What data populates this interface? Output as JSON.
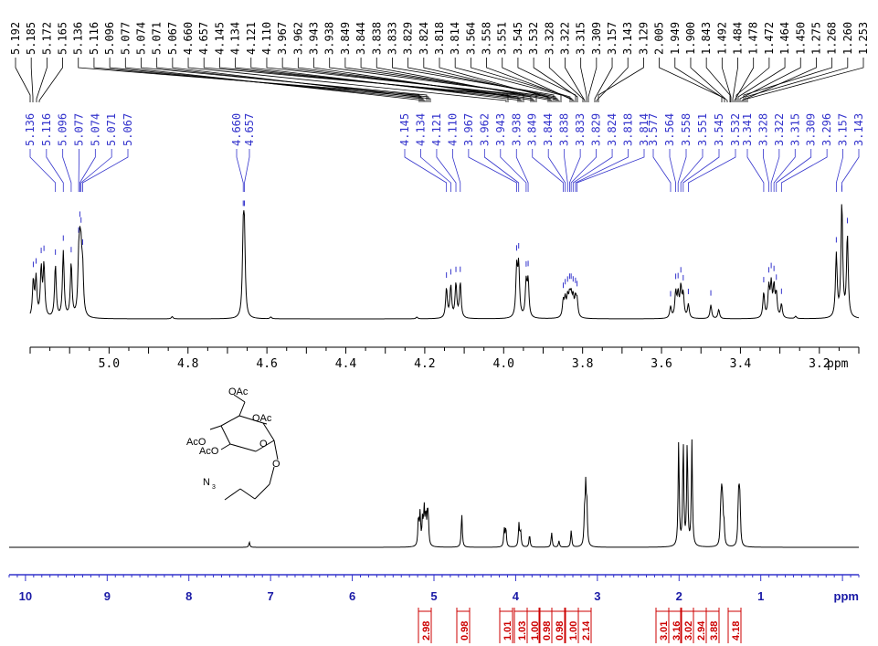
{
  "chart_data": [
    {
      "type": "line",
      "panel": "expanded",
      "xlabel": "ppm",
      "xlim": [
        5.2,
        3.1
      ],
      "reversed_axis": true,
      "x_ticks": [
        "5.0",
        "4.8",
        "4.6",
        "4.4",
        "4.2",
        "4.0",
        "3.8",
        "3.6",
        "3.4",
        "3.2"
      ],
      "top_peak_labels": [
        "5.192",
        "5.185",
        "5.172",
        "5.165",
        "5.136",
        "5.116",
        "5.096",
        "5.077",
        "5.074",
        "5.071",
        "5.067",
        "4.660",
        "4.657",
        "4.145",
        "4.134",
        "4.121",
        "4.110",
        "3.967",
        "3.962",
        "3.943",
        "3.938",
        "3.849",
        "3.844",
        "3.838",
        "3.833",
        "3.829",
        "3.824",
        "3.818",
        "3.814",
        "3.564",
        "3.558",
        "3.551",
        "3.545",
        "3.532",
        "3.328",
        "3.322",
        "3.315",
        "3.309",
        "3.157",
        "3.143",
        "3.129",
        "2.005",
        "1.949",
        "1.900",
        "1.843",
        "1.492",
        "1.484",
        "1.478",
        "1.472",
        "1.464",
        "1.450",
        "1.275",
        "1.268",
        "1.260",
        "1.253"
      ],
      "blue_peak_labels": [
        "5.136",
        "5.116",
        "5.096",
        "5.077",
        "5.074",
        "5.071",
        "5.067",
        "4.660",
        "4.657",
        "4.145",
        "4.134",
        "4.121",
        "4.110",
        "3.967",
        "3.962",
        "3.943",
        "3.938",
        "3.849",
        "3.844",
        "3.838",
        "3.833",
        "3.829",
        "3.824",
        "3.818",
        "3.814",
        "3.577",
        "3.564",
        "3.558",
        "3.551",
        "3.545",
        "3.532",
        "3.341",
        "3.328",
        "3.322",
        "3.315",
        "3.309",
        "3.296",
        "3.157",
        "3.143"
      ],
      "peaks": [
        {
          "x": 5.192,
          "h": 0.32
        },
        {
          "x": 5.185,
          "h": 0.34
        },
        {
          "x": 5.172,
          "h": 0.42
        },
        {
          "x": 5.165,
          "h": 0.45
        },
        {
          "x": 5.136,
          "h": 0.46
        },
        {
          "x": 5.116,
          "h": 0.58
        },
        {
          "x": 5.096,
          "h": 0.47
        },
        {
          "x": 5.077,
          "h": 0.4
        },
        {
          "x": 5.074,
          "h": 0.42
        },
        {
          "x": 5.071,
          "h": 0.41
        },
        {
          "x": 5.067,
          "h": 0.37
        },
        {
          "x": 4.66,
          "h": 0.64
        },
        {
          "x": 4.657,
          "h": 0.64
        },
        {
          "x": 4.84,
          "h": 0.02
        },
        {
          "x": 4.59,
          "h": 0.015
        },
        {
          "x": 4.22,
          "h": 0.015
        },
        {
          "x": 4.145,
          "h": 0.26
        },
        {
          "x": 4.134,
          "h": 0.28
        },
        {
          "x": 4.121,
          "h": 0.3
        },
        {
          "x": 4.11,
          "h": 0.31
        },
        {
          "x": 3.967,
          "h": 0.42
        },
        {
          "x": 3.962,
          "h": 0.44
        },
        {
          "x": 3.943,
          "h": 0.3
        },
        {
          "x": 3.938,
          "h": 0.31
        },
        {
          "x": 3.849,
          "h": 0.14
        },
        {
          "x": 3.844,
          "h": 0.15
        },
        {
          "x": 3.838,
          "h": 0.16
        },
        {
          "x": 3.833,
          "h": 0.16
        },
        {
          "x": 3.829,
          "h": 0.16
        },
        {
          "x": 3.824,
          "h": 0.16
        },
        {
          "x": 3.818,
          "h": 0.15
        },
        {
          "x": 3.814,
          "h": 0.14
        },
        {
          "x": 3.577,
          "h": 0.1
        },
        {
          "x": 3.564,
          "h": 0.22
        },
        {
          "x": 3.558,
          "h": 0.2
        },
        {
          "x": 3.551,
          "h": 0.26
        },
        {
          "x": 3.545,
          "h": 0.2
        },
        {
          "x": 3.532,
          "h": 0.12
        },
        {
          "x": 3.475,
          "h": 0.12
        },
        {
          "x": 3.455,
          "h": 0.08
        },
        {
          "x": 3.341,
          "h": 0.22
        },
        {
          "x": 3.328,
          "h": 0.26
        },
        {
          "x": 3.322,
          "h": 0.28
        },
        {
          "x": 3.315,
          "h": 0.26
        },
        {
          "x": 3.309,
          "h": 0.2
        },
        {
          "x": 3.296,
          "h": 0.12
        },
        {
          "x": 3.26,
          "h": 0.02
        },
        {
          "x": 3.157,
          "h": 0.55
        },
        {
          "x": 3.143,
          "h": 1.0
        },
        {
          "x": 3.129,
          "h": 0.72
        }
      ]
    },
    {
      "type": "line",
      "panel": "full",
      "xlabel": "ppm",
      "xlim": [
        10.2,
        -0.2
      ],
      "reversed_axis": true,
      "x_ticks": [
        "10",
        "9",
        "8",
        "7",
        "6",
        "5",
        "4",
        "3",
        "2",
        "1"
      ],
      "peaks": [
        {
          "x": 7.26,
          "h": 0.05
        },
        {
          "x": 5.19,
          "h": 0.27
        },
        {
          "x": 5.17,
          "h": 0.3
        },
        {
          "x": 5.14,
          "h": 0.24
        },
        {
          "x": 5.12,
          "h": 0.34
        },
        {
          "x": 5.1,
          "h": 0.28
        },
        {
          "x": 5.08,
          "h": 0.25
        },
        {
          "x": 5.07,
          "h": 0.22
        },
        {
          "x": 4.66,
          "h": 0.32
        },
        {
          "x": 4.14,
          "h": 0.17
        },
        {
          "x": 4.12,
          "h": 0.18
        },
        {
          "x": 3.96,
          "h": 0.22
        },
        {
          "x": 3.94,
          "h": 0.15
        },
        {
          "x": 3.83,
          "h": 0.12
        },
        {
          "x": 3.56,
          "h": 0.14
        },
        {
          "x": 3.47,
          "h": 0.06
        },
        {
          "x": 3.32,
          "h": 0.16
        },
        {
          "x": 3.157,
          "h": 0.27
        },
        {
          "x": 3.143,
          "h": 0.52
        },
        {
          "x": 3.129,
          "h": 0.36
        },
        {
          "x": 2.005,
          "h": 1.0
        },
        {
          "x": 1.949,
          "h": 1.0
        },
        {
          "x": 1.9,
          "h": 1.0
        },
        {
          "x": 1.843,
          "h": 1.0
        },
        {
          "x": 1.492,
          "h": 0.2
        },
        {
          "x": 1.484,
          "h": 0.22
        },
        {
          "x": 1.478,
          "h": 0.22
        },
        {
          "x": 1.472,
          "h": 0.22
        },
        {
          "x": 1.464,
          "h": 0.2
        },
        {
          "x": 1.45,
          "h": 0.18
        },
        {
          "x": 1.275,
          "h": 0.26
        },
        {
          "x": 1.268,
          "h": 0.28
        },
        {
          "x": 1.26,
          "h": 0.27
        },
        {
          "x": 1.253,
          "h": 0.24
        }
      ],
      "integrals": [
        {
          "x": 5.1,
          "value": "2.98"
        },
        {
          "x": 4.66,
          "value": "0.98"
        },
        {
          "x": 4.13,
          "value": "1.01"
        },
        {
          "x": 3.95,
          "value": "1.03"
        },
        {
          "x": 3.83,
          "value": "1.00"
        },
        {
          "x": 3.56,
          "value": "0.98"
        },
        {
          "x": 3.47,
          "value": "0.98"
        },
        {
          "x": 3.32,
          "value": "1.00"
        },
        {
          "x": 3.14,
          "value": "2.14"
        },
        {
          "x": 2.005,
          "value": "3.01"
        },
        {
          "x": 1.949,
          "value": "3.16"
        },
        {
          "x": 1.9,
          "value": "3.02"
        },
        {
          "x": 1.843,
          "value": "2.94"
        },
        {
          "x": 1.47,
          "value": "3.88"
        },
        {
          "x": 1.26,
          "value": "4.18"
        }
      ]
    }
  ],
  "structure": {
    "labels": [
      "OAc",
      "OAc",
      "AcO",
      "AcO",
      "O",
      "O",
      "N"
    ],
    "subscript": "3"
  },
  "colors": {
    "spectrum": "#000000",
    "peak_marker": "#3333cc",
    "blue_labels": "#3333cc",
    "axis_blue": "#3333cc",
    "axis_text_blue": "#1a1aa6",
    "integral_red": "#cc0000"
  }
}
